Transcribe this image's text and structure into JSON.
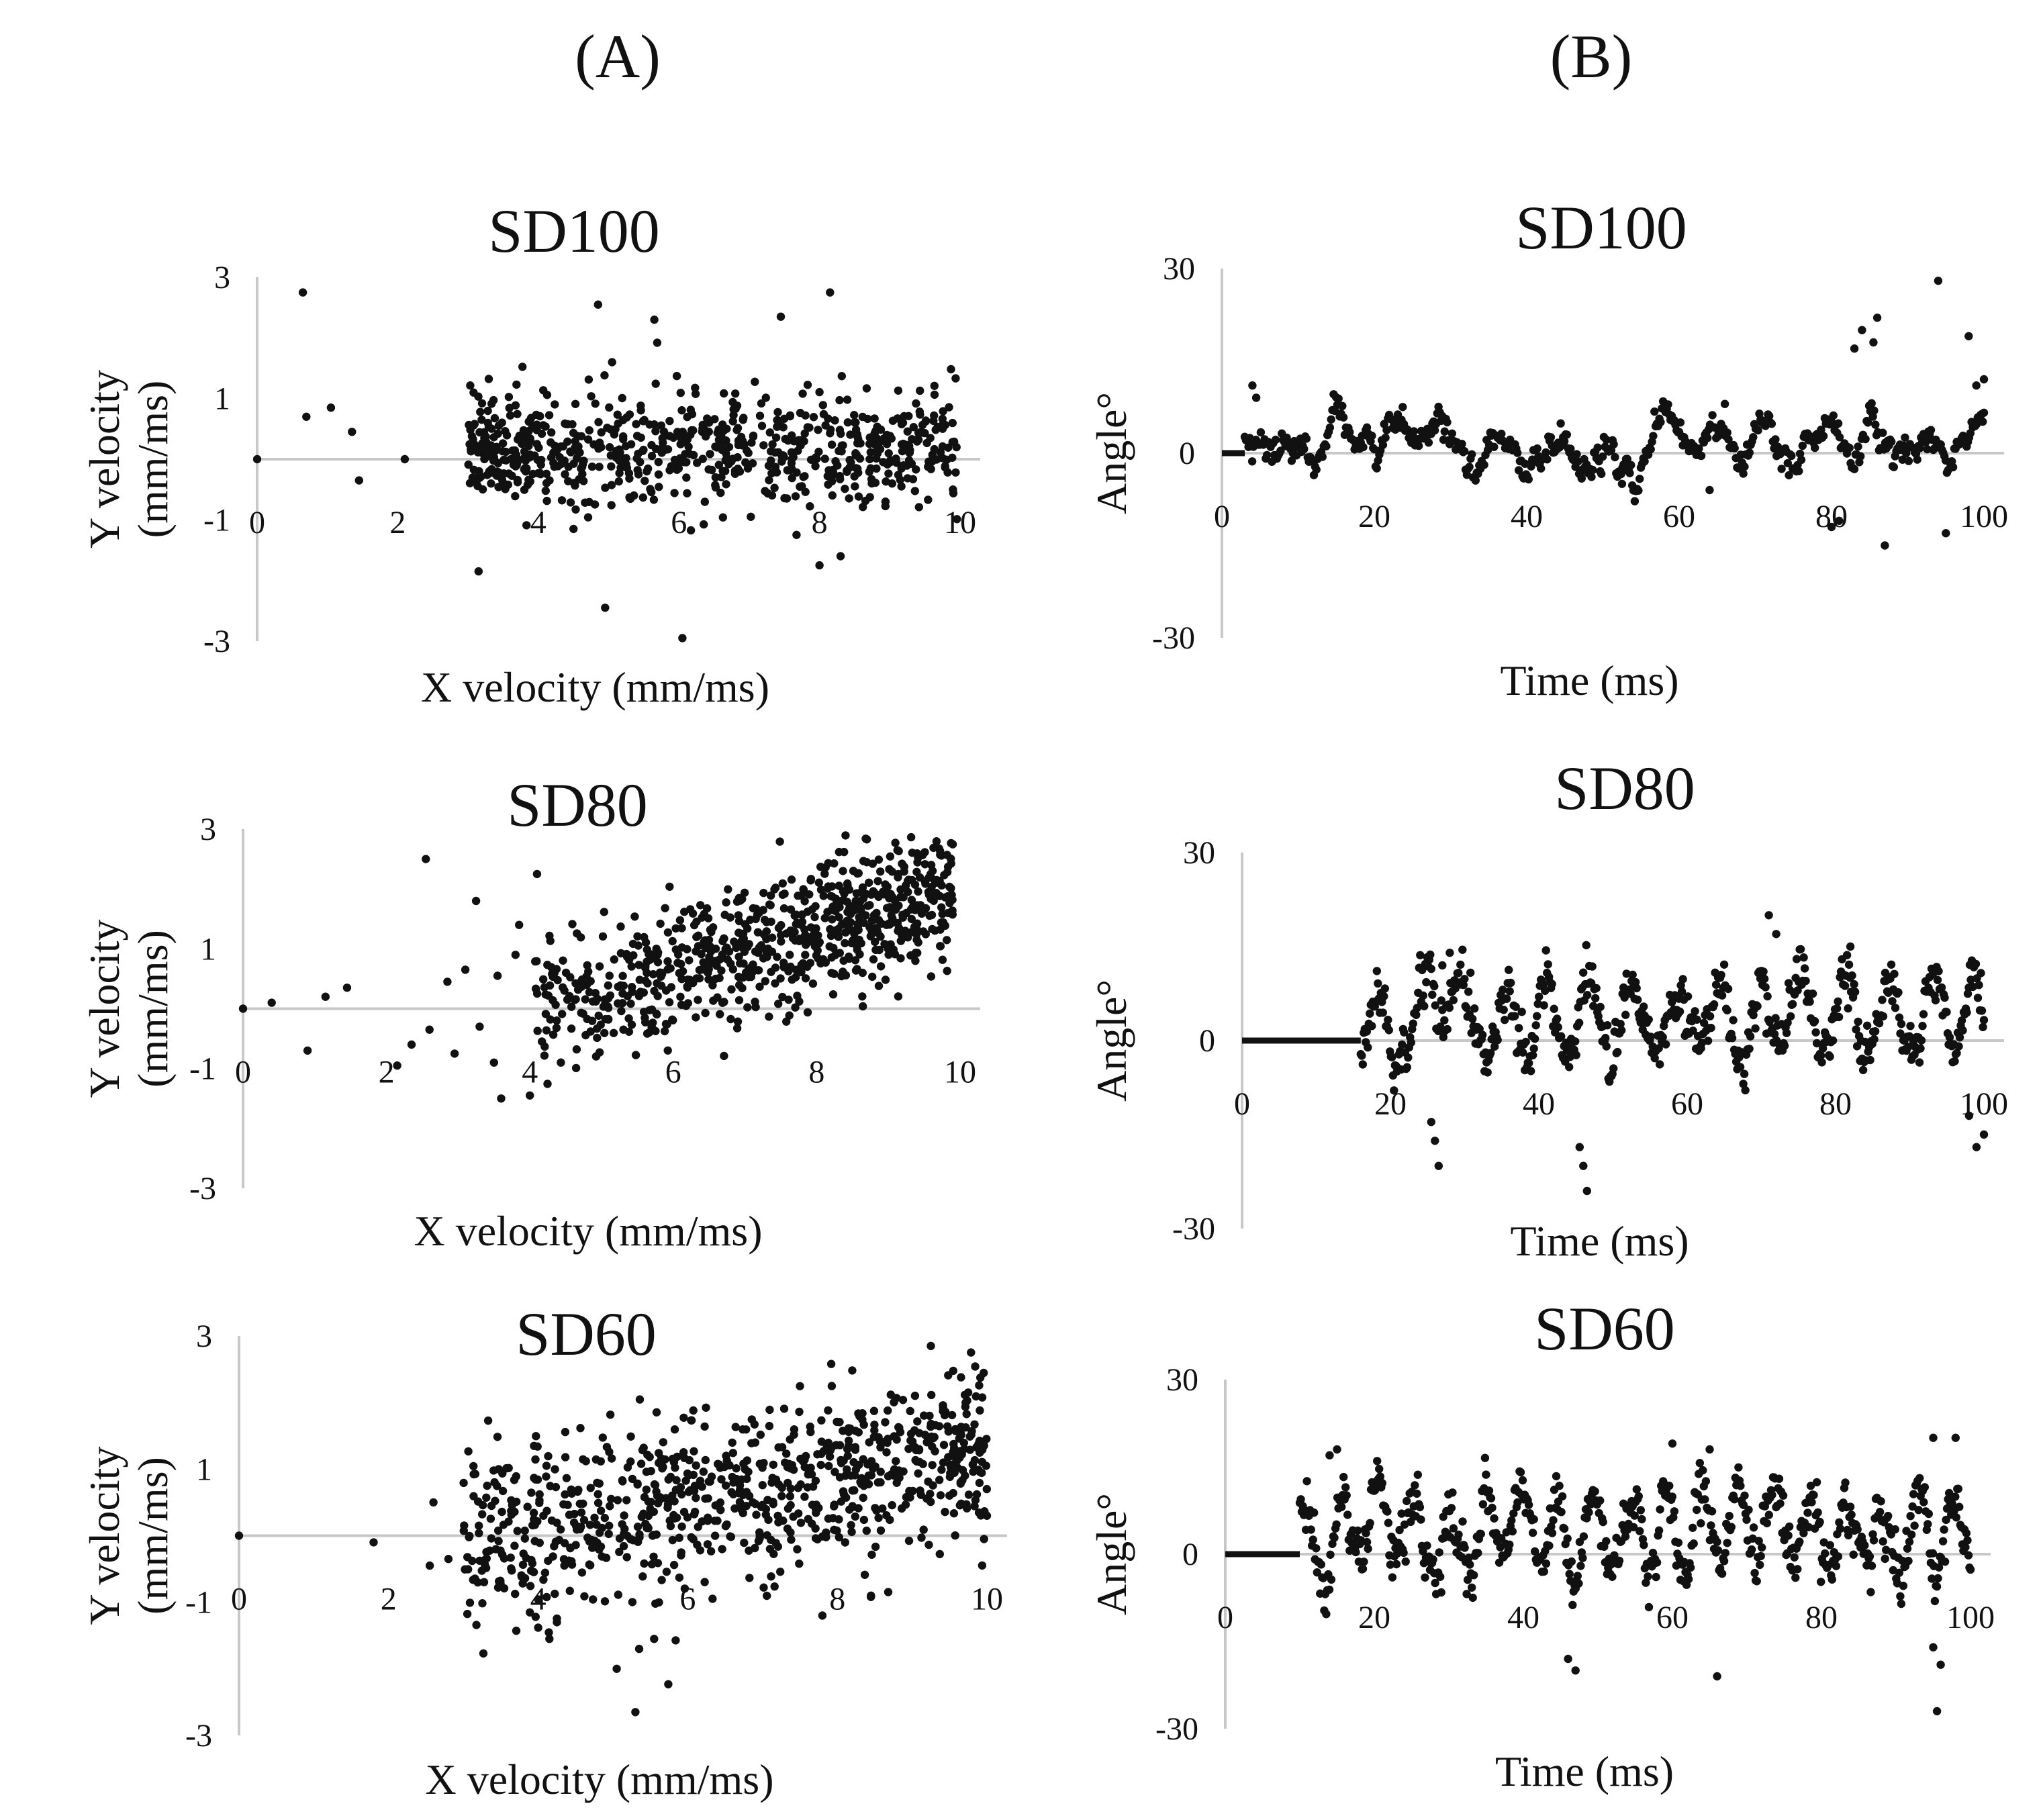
{
  "figure": {
    "columns": [
      {
        "label": "(A)"
      },
      {
        "label": "(B)"
      }
    ]
  },
  "colors": {
    "point": "#111111",
    "axis": "#c8c8c8",
    "text": "#111111"
  },
  "chart_data": [
    {
      "id": "A-SD100",
      "type": "scatter",
      "title": "SD100",
      "xlabel": "X velocity (mm/ms)",
      "ylabel": [
        "Y velocity",
        "(mm/ms)"
      ],
      "xlim": [
        0,
        10
      ],
      "ylim": [
        -3,
        3
      ],
      "xticks": [
        0,
        2,
        4,
        6,
        8,
        10
      ],
      "yticks": [
        -3,
        -1,
        1,
        3
      ],
      "series": [
        {
          "name": "SD100",
          "cloud": {
            "n": 720,
            "x": [
              3.0,
              10.0
            ],
            "slope": 0.0,
            "intercept": 0.15,
            "sd": 0.45,
            "xskew": 0.85
          }
        }
      ],
      "outliers": [
        [
          0.0,
          0.0
        ],
        [
          0.65,
          2.75
        ],
        [
          0.7,
          0.7
        ],
        [
          1.05,
          0.85
        ],
        [
          1.35,
          0.45
        ],
        [
          1.45,
          -0.35
        ],
        [
          2.1,
          0.0
        ],
        [
          3.15,
          -1.85
        ],
        [
          4.5,
          -1.15
        ],
        [
          4.85,
          2.55
        ],
        [
          4.95,
          -2.45
        ],
        [
          5.05,
          1.6
        ],
        [
          5.65,
          2.3
        ],
        [
          6.05,
          -2.95
        ],
        [
          7.45,
          2.35
        ],
        [
          8.15,
          2.75
        ],
        [
          8.0,
          -1.75
        ],
        [
          8.3,
          -1.6
        ]
      ]
    },
    {
      "id": "A-SD80",
      "type": "scatter",
      "title": "SD80",
      "xlabel": "X velocity (mm/ms)",
      "ylabel": [
        "Y velocity",
        "(mm/ms)"
      ],
      "xlim": [
        0,
        10
      ],
      "ylim": [
        -3,
        3
      ],
      "xticks": [
        0,
        2,
        4,
        6,
        8,
        10
      ],
      "yticks": [
        -3,
        -1,
        1,
        3
      ],
      "series": [
        {
          "name": "SD80",
          "cloud": {
            "n": 760,
            "x": [
              4.0,
              9.9
            ],
            "slope": 0.36,
            "intercept": -1.55,
            "sd": 0.55,
            "xskew": 1.25
          }
        }
      ],
      "outliers": [
        [
          0.0,
          0.0
        ],
        [
          0.4,
          0.1
        ],
        [
          0.9,
          -0.7
        ],
        [
          1.15,
          0.2
        ],
        [
          1.45,
          0.35
        ],
        [
          2.15,
          -0.95
        ],
        [
          2.35,
          -0.6
        ],
        [
          2.6,
          -0.35
        ],
        [
          2.55,
          2.5
        ],
        [
          2.85,
          0.45
        ],
        [
          3.1,
          0.65
        ],
        [
          3.25,
          1.8
        ],
        [
          3.5,
          -0.9
        ],
        [
          3.55,
          0.55
        ],
        [
          3.8,
          0.9
        ],
        [
          3.85,
          1.4
        ],
        [
          3.6,
          -1.5
        ],
        [
          4.1,
          2.25
        ],
        [
          4.0,
          -1.45
        ],
        [
          3.3,
          -0.3
        ],
        [
          2.95,
          -0.75
        ]
      ]
    },
    {
      "id": "A-SD60",
      "type": "scatter",
      "title": "SD60",
      "xlabel": "X velocity (mm/ms)",
      "ylabel": [
        "Y velocity",
        "(mm/ms)"
      ],
      "xlim": [
        0,
        10
      ],
      "ylim": [
        -3,
        3
      ],
      "xticks": [
        0,
        2,
        4,
        6,
        8,
        10
      ],
      "yticks": [
        -3,
        -1,
        1,
        3
      ],
      "series": [
        {
          "name": "SD60",
          "cloud": {
            "n": 820,
            "x": [
              3.0,
              10.0
            ],
            "slope": 0.2,
            "intercept": -0.7,
            "sd": 0.65,
            "xskew": 1.1
          }
        }
      ],
      "outliers": [
        [
          0.0,
          0.0
        ],
        [
          1.8,
          -0.1
        ],
        [
          2.6,
          0.5
        ],
        [
          2.55,
          -0.45
        ],
        [
          2.8,
          -0.35
        ],
        [
          4.15,
          -1.55
        ],
        [
          4.25,
          -1.3
        ],
        [
          5.05,
          -2.0
        ],
        [
          5.35,
          -1.7
        ],
        [
          5.55,
          -1.55
        ],
        [
          5.3,
          -2.65
        ],
        [
          9.25,
          2.85
        ],
        [
          9.75,
          2.15
        ],
        [
          10.0,
          0.3
        ],
        [
          8.45,
          -0.9
        ],
        [
          7.8,
          -1.2
        ]
      ]
    },
    {
      "id": "B-SD100",
      "type": "scatter",
      "title": "SD100",
      "xlabel": "Time (ms)",
      "ylabel": [
        "Angle°"
      ],
      "xlim": [
        0,
        100
      ],
      "ylim": [
        -30,
        30
      ],
      "xticks": [
        0,
        20,
        40,
        60,
        80,
        100
      ],
      "yticks": [
        -30,
        0,
        30
      ],
      "zero_run": [
        0,
        3
      ],
      "series": [
        {
          "name": "SD100",
          "walk": {
            "n": 600,
            "t": [
              3,
              100
            ],
            "base": 2.0,
            "amp": 2.5,
            "freq": 0.9,
            "noise": 1.5
          }
        }
      ],
      "outliers": [
        [
          4,
          11
        ],
        [
          4.5,
          9
        ],
        [
          64,
          -6
        ],
        [
          66,
          8
        ],
        [
          83,
          17
        ],
        [
          84,
          20
        ],
        [
          86,
          22
        ],
        [
          85.5,
          18
        ],
        [
          87,
          -15
        ],
        [
          94,
          28
        ],
        [
          95,
          -13
        ],
        [
          98,
          19
        ],
        [
          99,
          11
        ],
        [
          100,
          12
        ],
        [
          80,
          -12
        ],
        [
          81,
          -11
        ],
        [
          52.5,
          -5
        ]
      ]
    },
    {
      "id": "B-SD80",
      "type": "scatter",
      "title": "SD80",
      "xlabel": "Time (ms)",
      "ylabel": [
        "Angle°"
      ],
      "xlim": [
        0,
        100
      ],
      "ylim": [
        -30,
        30
      ],
      "xticks": [
        0,
        20,
        40,
        60,
        80,
        100
      ],
      "yticks": [
        -30,
        0,
        30
      ],
      "zero_run": [
        0,
        16
      ],
      "series": [
        {
          "name": "SD80",
          "walk": {
            "n": 620,
            "t": [
              16,
              100
            ],
            "base": 3.0,
            "amp": 5.5,
            "freq": 1.1,
            "noise": 3.8
          }
        }
      ],
      "outliers": [
        [
          25.5,
          -13
        ],
        [
          26,
          -16
        ],
        [
          26.5,
          -20
        ],
        [
          45.5,
          -17
        ],
        [
          46,
          -20
        ],
        [
          46.5,
          -24
        ],
        [
          71,
          20
        ],
        [
          72,
          17
        ],
        [
          82,
          15
        ],
        [
          99,
          -17
        ],
        [
          100,
          -15
        ],
        [
          98,
          -12
        ],
        [
          27,
          12
        ],
        [
          28,
          14
        ]
      ]
    },
    {
      "id": "B-SD60",
      "type": "scatter",
      "title": "SD60",
      "xlabel": "Time (ms)",
      "ylabel": [
        "Angle°"
      ],
      "xlim": [
        0,
        100
      ],
      "ylim": [
        -30,
        30
      ],
      "xticks": [
        0,
        20,
        40,
        60,
        80,
        100
      ],
      "yticks": [
        -30,
        0,
        30
      ],
      "zero_run": [
        0,
        10
      ],
      "series": [
        {
          "name": "SD60",
          "walk": {
            "n": 660,
            "t": [
              10,
              100
            ],
            "base": 3.5,
            "amp": 6.5,
            "freq": 1.3,
            "noise": 4.2
          }
        }
      ],
      "outliers": [
        [
          14,
          17
        ],
        [
          15,
          18
        ],
        [
          46,
          -18
        ],
        [
          47,
          -20
        ],
        [
          66,
          -21
        ],
        [
          95,
          -16
        ],
        [
          96,
          -19
        ],
        [
          95.5,
          -27
        ],
        [
          98,
          20
        ],
        [
          95,
          20
        ],
        [
          60,
          19
        ],
        [
          65,
          18
        ]
      ]
    }
  ]
}
